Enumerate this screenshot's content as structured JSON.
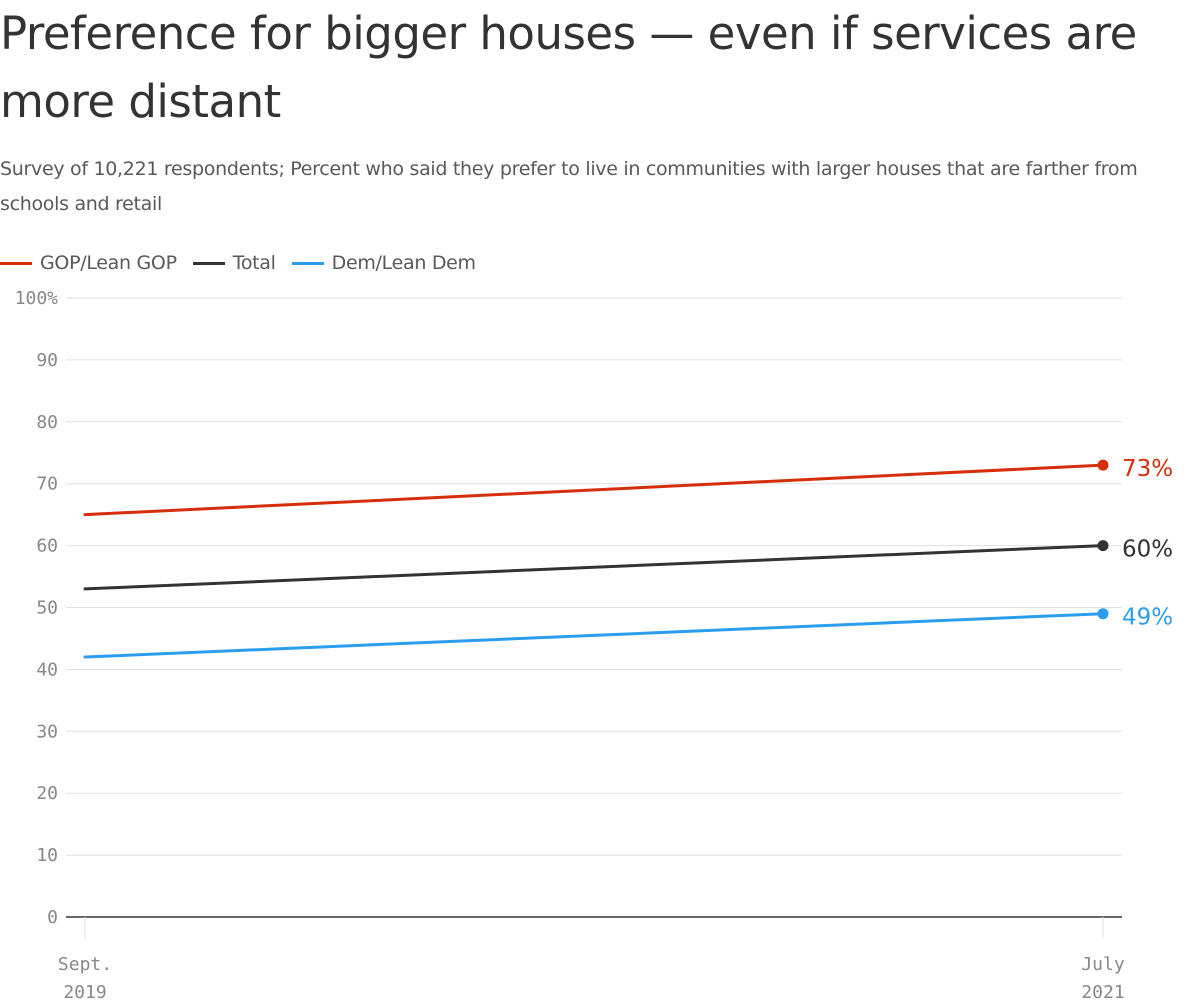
{
  "title": "Preference for bigger houses — even if services are more distant",
  "subtitle": "Survey of 10,221 respondents; Percent who said they prefer to live in communities with larger houses that are farther from schools and retail",
  "colors": {
    "gop": "#d62e0a",
    "total": "#333333",
    "dem": "#2b9ded",
    "grid": "#e0e0e0",
    "axis": "#333333",
    "tick_text": "#888888"
  },
  "chart_data": {
    "type": "line",
    "title": "Preference for bigger houses — even if services are more distant",
    "subtitle": "Survey of 10,221 respondents; Percent who said they prefer to live in communities with larger houses that are farther from schools and retail",
    "x": [
      "Sept. 2019",
      "July 2021"
    ],
    "x_tick_labels": [
      [
        "Sept.",
        "2019"
      ],
      [
        "July",
        "2021"
      ]
    ],
    "y_ticks": [
      "100%",
      "90",
      "80",
      "70",
      "60",
      "50",
      "40",
      "30",
      "20",
      "10",
      "0"
    ],
    "ylim": [
      0,
      100
    ],
    "xlabel": "",
    "ylabel": "",
    "grid": true,
    "legend_position": "top-left",
    "series": [
      {
        "name": "GOP/Lean GOP",
        "key": "gop",
        "values": [
          65,
          73
        ],
        "end_label": "73%"
      },
      {
        "name": "Total",
        "key": "total",
        "values": [
          53,
          60
        ],
        "end_label": "60%"
      },
      {
        "name": "Dem/Lean Dem",
        "key": "dem",
        "values": [
          42,
          49
        ],
        "end_label": "49%"
      }
    ]
  }
}
